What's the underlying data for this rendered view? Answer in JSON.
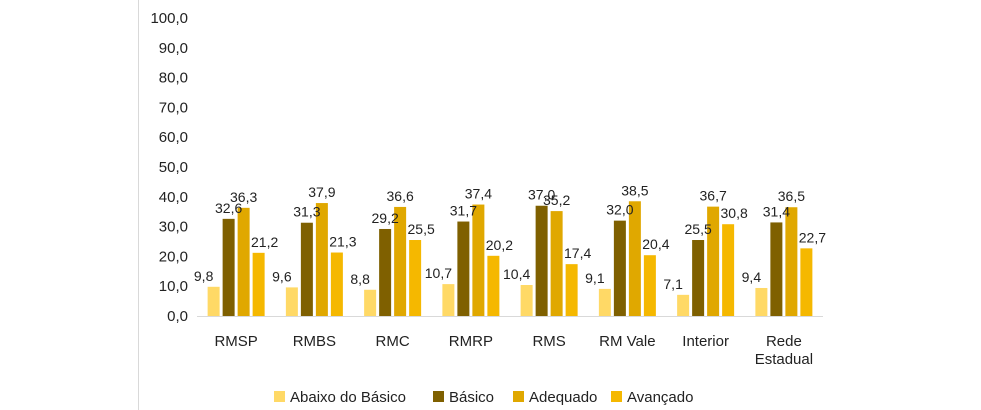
{
  "chart_data": {
    "type": "bar",
    "title": "",
    "xlabel": "",
    "ylabel": "",
    "ylim": [
      0,
      100
    ],
    "yticks": [
      "0,0",
      "10,0",
      "20,0",
      "30,0",
      "40,0",
      "50,0",
      "60,0",
      "70,0",
      "80,0",
      "90,0",
      "100,0"
    ],
    "categories": [
      [
        "RMSP"
      ],
      [
        "RMBS"
      ],
      [
        "RMC"
      ],
      [
        "RMRP"
      ],
      [
        "RMS"
      ],
      [
        "RM Vale"
      ],
      [
        "Interior"
      ],
      [
        "Rede",
        "Estadual"
      ]
    ],
    "series": [
      {
        "name": "Abaixo do Básico",
        "color": "#ffd966",
        "values": [
          9.8,
          9.6,
          8.8,
          10.7,
          10.4,
          9.1,
          7.1,
          9.4
        ],
        "labels": [
          "9,8",
          "9,6",
          "8,8",
          "10,7",
          "10,4",
          "9,1",
          "7,1",
          "9,4"
        ]
      },
      {
        "name": "Básico",
        "color": "#7f6000",
        "values": [
          32.6,
          31.3,
          29.2,
          31.7,
          37.0,
          32.0,
          25.5,
          31.4
        ],
        "labels": [
          "32,6",
          "31,3",
          "29,2",
          "31,7",
          "37,0",
          "32,0",
          "25,5",
          "31,4"
        ]
      },
      {
        "name": "Adequado",
        "color": "#e0a800",
        "values": [
          36.3,
          37.9,
          36.6,
          37.4,
          35.2,
          38.5,
          36.7,
          36.5
        ],
        "labels": [
          "36,3",
          "37,9",
          "36,6",
          "37,4",
          "35,2",
          "38,5",
          "36,7",
          "36,5"
        ]
      },
      {
        "name": "Avançado",
        "color": "#f5b800",
        "values": [
          21.2,
          21.3,
          25.5,
          20.2,
          17.4,
          20.4,
          30.8,
          22.7
        ],
        "labels": [
          "21,2",
          "21,3",
          "25,5",
          "20,2",
          "17,4",
          "20,4",
          "30,8",
          "22,7"
        ]
      }
    ],
    "legend_position": "bottom",
    "grid": false
  }
}
